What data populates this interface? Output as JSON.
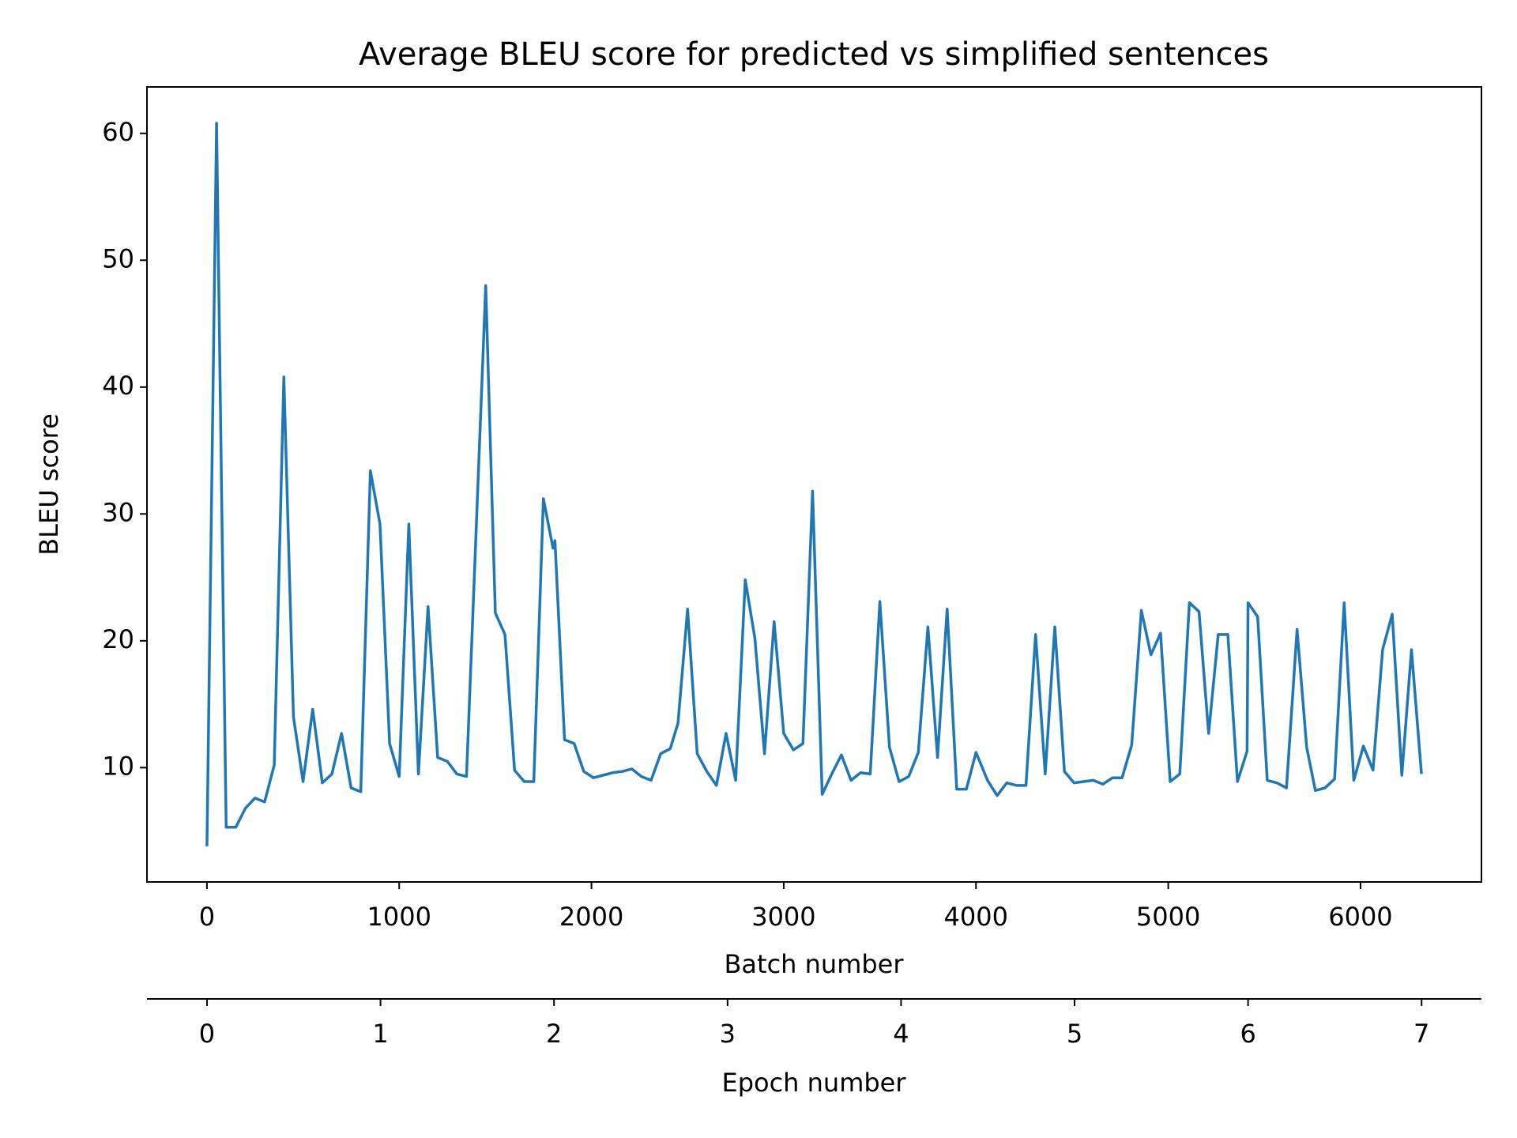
{
  "chart_data": {
    "type": "line",
    "title": "Average BLEU score for predicted vs simplified sentences",
    "xlabel": "Batch number",
    "ylabel": "BLEU score",
    "x2label": "Epoch number",
    "x": [
      0,
      50,
      100,
      150,
      200,
      250,
      300,
      350,
      400,
      450,
      500,
      550,
      600,
      650,
      700,
      750,
      800,
      850,
      900,
      950,
      1000,
      1050,
      1100,
      1150,
      1200,
      1250,
      1300,
      1350,
      1450,
      1500,
      1550,
      1600,
      1650,
      1700,
      1750,
      1800,
      1810,
      1860,
      1910,
      1960,
      2010,
      2060,
      2110,
      2160,
      2210,
      2260,
      2310,
      2360,
      2410,
      2450,
      2500,
      2550,
      2600,
      2650,
      2700,
      2750,
      2800,
      2850,
      2900,
      2950,
      3000,
      3050,
      3100,
      3150,
      3200,
      3250,
      3300,
      3350,
      3400,
      3450,
      3500,
      3550,
      3600,
      3650,
      3700,
      3750,
      3800,
      3850,
      3900,
      3950,
      4000,
      4060,
      4110,
      4160,
      4210,
      4260,
      4310,
      4360,
      4410,
      4460,
      4510,
      4560,
      4610,
      4660,
      4710,
      4760,
      4810,
      4860,
      4910,
      4960,
      5010,
      5060,
      5110,
      5160,
      5210,
      5260,
      5310,
      5360,
      5410,
      5415,
      5465,
      5515,
      5565,
      5615,
      5670,
      5720,
      5765,
      5815,
      5865,
      5915,
      5965,
      6015,
      6065,
      6115,
      6165,
      6215,
      6265,
      6317
    ],
    "series": [
      {
        "name": "BLEU score",
        "color": "#1f77b4",
        "values": [
          3.8,
          60.8,
          5.3,
          5.3,
          6.8,
          7.6,
          7.3,
          10.2,
          40.8,
          14.0,
          8.9,
          14.6,
          8.8,
          9.5,
          12.7,
          8.4,
          8.1,
          33.4,
          29.2,
          11.9,
          9.3,
          29.2,
          9.5,
          22.7,
          10.8,
          10.5,
          9.5,
          9.3,
          48.0,
          22.2,
          20.5,
          9.8,
          8.9,
          8.9,
          31.2,
          27.3,
          27.9,
          12.2,
          11.9,
          9.7,
          9.2,
          9.4,
          9.6,
          9.7,
          9.9,
          9.3,
          9.0,
          11.1,
          11.5,
          13.5,
          22.5,
          11.1,
          9.7,
          8.6,
          12.7,
          9.0,
          24.8,
          20.2,
          11.1,
          21.5,
          12.7,
          11.4,
          11.9,
          31.8,
          7.9,
          9.5,
          11.0,
          9.0,
          9.6,
          9.5,
          23.1,
          11.6,
          8.9,
          9.3,
          11.2,
          21.1,
          10.8,
          22.5,
          8.3,
          8.3,
          11.2,
          9.0,
          7.8,
          8.8,
          8.6,
          8.6,
          20.5,
          9.5,
          21.1,
          9.7,
          8.8,
          8.9,
          9.0,
          8.7,
          9.2,
          9.2,
          11.8,
          22.4,
          18.9,
          20.6,
          8.9,
          9.5,
          23.0,
          22.3,
          12.7,
          20.5,
          20.5,
          8.9,
          11.3,
          23.0,
          21.9,
          9.0,
          8.8,
          8.4,
          20.9,
          11.6,
          8.2,
          8.4,
          9.1,
          23.0,
          9.0,
          11.7,
          9.8,
          19.3,
          22.1,
          9.4,
          19.3,
          9.5
        ]
      }
    ],
    "xlim": [
      -312,
      6629
    ],
    "ylim": [
      0.99,
      63.66
    ],
    "xticks": [
      0,
      1000,
      2000,
      3000,
      4000,
      5000,
      6000
    ],
    "yticks": [
      10,
      20,
      30,
      40,
      50,
      60
    ],
    "x2lim": [
      -0.346,
      7.345
    ],
    "x2ticks": [
      0,
      1,
      2,
      3,
      4,
      5,
      6,
      7
    ]
  }
}
